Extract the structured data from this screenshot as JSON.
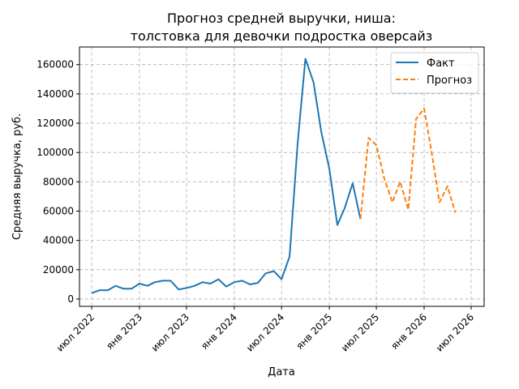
{
  "chart_data": {
    "type": "line",
    "title_line1": "Прогноз средней выручки, ниша:",
    "title_line2": "толстовка для девочки подростка оверсайз",
    "xlabel": "Дата",
    "ylabel": "Средняя выручка, руб.",
    "xlim": [
      "2022-05-15",
      "2026-08-20"
    ],
    "ylim": [
      -5000,
      172000
    ],
    "x_ticks": [
      {
        "date": "2022-07-01",
        "label": "июл 2022"
      },
      {
        "date": "2023-01-01",
        "label": "янв 2023"
      },
      {
        "date": "2023-07-01",
        "label": "июл 2023"
      },
      {
        "date": "2024-01-01",
        "label": "янв 2024"
      },
      {
        "date": "2024-07-01",
        "label": "июл 2024"
      },
      {
        "date": "2025-01-01",
        "label": "янв 2025"
      },
      {
        "date": "2025-07-01",
        "label": "июл 2025"
      },
      {
        "date": "2026-01-01",
        "label": "янв 2026"
      },
      {
        "date": "2026-07-01",
        "label": "июл 2026"
      }
    ],
    "y_ticks": [
      {
        "value": 0,
        "label": "0"
      },
      {
        "value": 20000,
        "label": "20000"
      },
      {
        "value": 40000,
        "label": "40000"
      },
      {
        "value": 60000,
        "label": "60000"
      },
      {
        "value": 80000,
        "label": "80000"
      },
      {
        "value": 100000,
        "label": "100000"
      },
      {
        "value": 120000,
        "label": "120000"
      },
      {
        "value": 140000,
        "label": "140000"
      },
      {
        "value": 160000,
        "label": "160000"
      }
    ],
    "grid": true,
    "legend_position": "top-right",
    "series": [
      {
        "name": "Факт",
        "color": "#1f77b4",
        "style": "solid",
        "points": [
          {
            "x": "2022-07-01",
            "y": 4000
          },
          {
            "x": "2022-08-01",
            "y": 6000
          },
          {
            "x": "2022-09-01",
            "y": 6000
          },
          {
            "x": "2022-10-01",
            "y": 9000
          },
          {
            "x": "2022-11-01",
            "y": 7000
          },
          {
            "x": "2022-12-01",
            "y": 7000
          },
          {
            "x": "2023-01-01",
            "y": 10500
          },
          {
            "x": "2023-02-01",
            "y": 9000
          },
          {
            "x": "2023-03-01",
            "y": 11500
          },
          {
            "x": "2023-04-01",
            "y": 12500
          },
          {
            "x": "2023-05-01",
            "y": 12500
          },
          {
            "x": "2023-06-01",
            "y": 6500
          },
          {
            "x": "2023-07-01",
            "y": 7500
          },
          {
            "x": "2023-08-01",
            "y": 9000
          },
          {
            "x": "2023-09-01",
            "y": 11500
          },
          {
            "x": "2023-10-01",
            "y": 10500
          },
          {
            "x": "2023-11-01",
            "y": 13500
          },
          {
            "x": "2023-12-01",
            "y": 8500
          },
          {
            "x": "2024-01-01",
            "y": 11500
          },
          {
            "x": "2024-02-01",
            "y": 12500
          },
          {
            "x": "2024-03-01",
            "y": 10000
          },
          {
            "x": "2024-04-01",
            "y": 11000
          },
          {
            "x": "2024-05-01",
            "y": 17500
          },
          {
            "x": "2024-06-01",
            "y": 19000
          },
          {
            "x": "2024-07-01",
            "y": 13500
          },
          {
            "x": "2024-08-01",
            "y": 29000
          },
          {
            "x": "2024-09-01",
            "y": 106000
          },
          {
            "x": "2024-10-01",
            "y": 164000
          },
          {
            "x": "2024-11-01",
            "y": 148000
          },
          {
            "x": "2024-12-01",
            "y": 114000
          },
          {
            "x": "2025-01-01",
            "y": 89000
          },
          {
            "x": "2025-02-01",
            "y": 50500
          },
          {
            "x": "2025-03-01",
            "y": 62000
          },
          {
            "x": "2025-04-01",
            "y": 79000
          },
          {
            "x": "2025-05-01",
            "y": 54500
          }
        ]
      },
      {
        "name": "Прогноз",
        "color": "#ff7f0e",
        "style": "dashed",
        "points": [
          {
            "x": "2025-05-01",
            "y": 54500
          },
          {
            "x": "2025-06-01",
            "y": 110000
          },
          {
            "x": "2025-07-01",
            "y": 105000
          },
          {
            "x": "2025-08-01",
            "y": 82000
          },
          {
            "x": "2025-09-01",
            "y": 66000
          },
          {
            "x": "2025-10-01",
            "y": 80000
          },
          {
            "x": "2025-11-01",
            "y": 61000
          },
          {
            "x": "2025-12-01",
            "y": 123000
          },
          {
            "x": "2026-01-01",
            "y": 130000
          },
          {
            "x": "2026-02-01",
            "y": 98000
          },
          {
            "x": "2026-03-01",
            "y": 66000
          },
          {
            "x": "2026-04-01",
            "y": 77000
          },
          {
            "x": "2026-05-01",
            "y": 59000
          }
        ]
      }
    ]
  }
}
